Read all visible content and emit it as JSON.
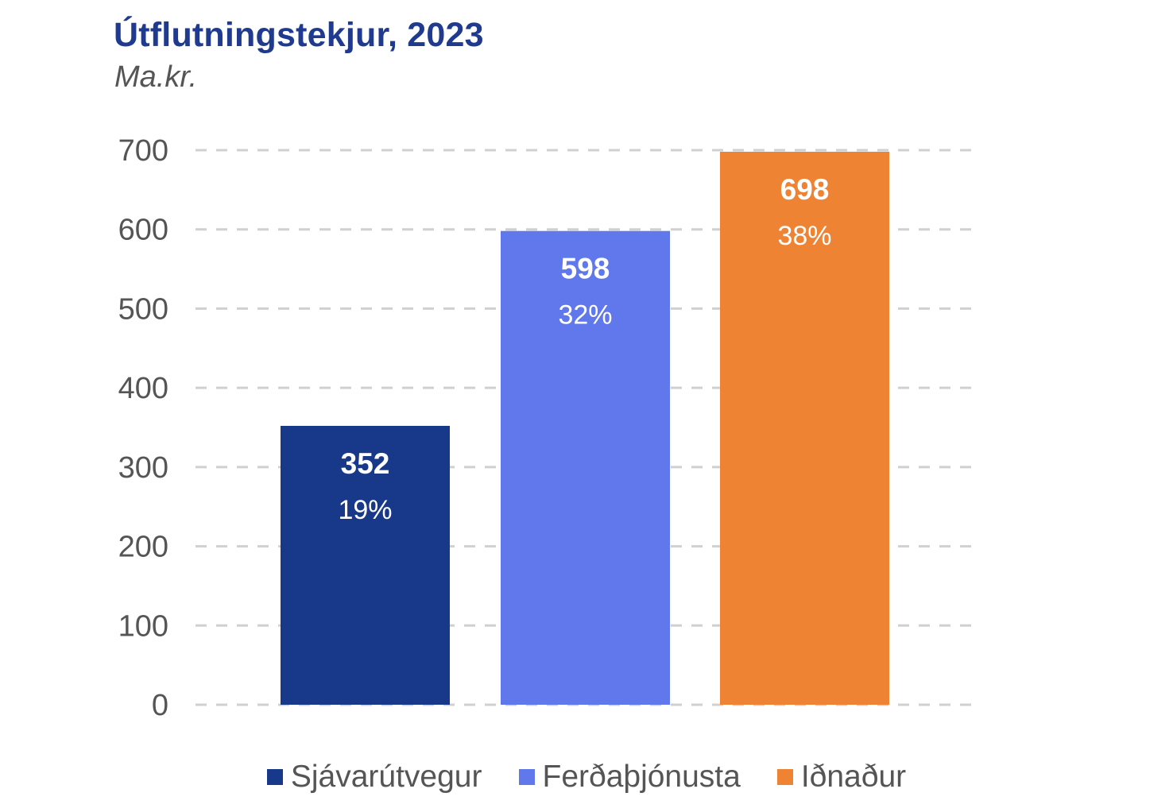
{
  "chart_data": {
    "type": "bar",
    "title": "Útflutningstekjur, 2023",
    "subtitle": "Ma.kr.",
    "categories": [
      "Sjávarútvegur",
      "Ferðaþjónusta",
      "Iðnaður"
    ],
    "values": [
      352,
      598,
      698
    ],
    "value_labels": [
      "352",
      "598",
      "698"
    ],
    "percent_labels": [
      "19%",
      "32%",
      "38%"
    ],
    "colors": [
      "#18398a",
      "#6078ec",
      "#ef8334"
    ],
    "ylim": [
      0,
      700
    ],
    "yticks": [
      0,
      100,
      200,
      300,
      400,
      500,
      600,
      700
    ],
    "ytick_labels": [
      "0",
      "100",
      "200",
      "300",
      "400",
      "500",
      "600",
      "700"
    ],
    "grid": "dashed horizontal",
    "legend_placement": "bottom",
    "xlabel": "",
    "ylabel": ""
  }
}
